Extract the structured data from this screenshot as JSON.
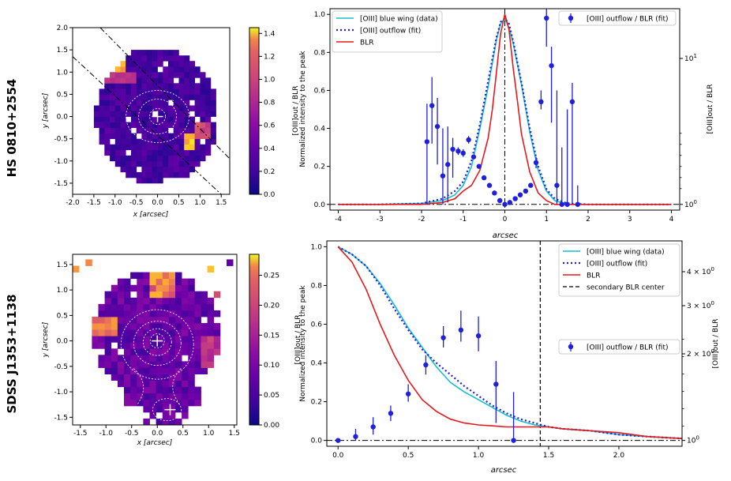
{
  "colors": {
    "cyan": "#17becf",
    "blue": "#1f1fdd",
    "red": "#e41a1c",
    "black": "#000000"
  },
  "chart_data": [
    {
      "id": "top-map",
      "type": "heatmap",
      "row_title": "HS 0810+2554",
      "xlabel": "x [arcsec]",
      "ylabel": "y [arcsec]",
      "xlim": [
        -2.0,
        1.7
      ],
      "ylim": [
        -1.75,
        2.0
      ],
      "xticks": [
        "-2.0",
        "-1.5",
        "-1.0",
        "-0.5",
        "0.0",
        "0.5",
        "1.0",
        "1.5"
      ],
      "yticks": [
        "2.0",
        "1.5",
        "1.0",
        "0.5",
        "0.0",
        "-0.5",
        "-1.0",
        "-1.5"
      ],
      "colorbar": {
        "label": "[OIII]out / BLR",
        "ticks": [
          "0.0",
          "0.2",
          "0.4",
          "0.6",
          "0.8",
          "1.0",
          "1.2",
          "1.4"
        ],
        "range": [
          0,
          1.45
        ]
      },
      "center": [
        0.0,
        0.0
      ]
    },
    {
      "id": "top-profile",
      "type": "line",
      "xlabel": "arcsec",
      "ylabel": "Normalized intensity to the peak",
      "y2label": "[OIII]out / BLR",
      "xlim": [
        -4.2,
        4.2
      ],
      "ylim": [
        -0.03,
        1.03
      ],
      "xticks": [
        "-4",
        "-3",
        "-2",
        "-1",
        "0",
        "1",
        "2",
        "3",
        "4"
      ],
      "yticks": [
        "0.0",
        "0.2",
        "0.4",
        "0.6",
        "0.8",
        "1.0"
      ],
      "y2ticks": [
        "10^0",
        "10^1"
      ],
      "legend_left": [
        "[OIII] blue wing (data)",
        "[OIII] outflow (fit)",
        "BLR"
      ],
      "legend_right": [
        "[OIII] outflow / BLR (fit)"
      ],
      "series": [
        {
          "name": "[OIII] blue wing (data)",
          "style": "cyan",
          "x": [
            -4.0,
            -3.0,
            -2.0,
            -1.5,
            -1.2,
            -1.0,
            -0.8,
            -0.6,
            -0.4,
            -0.2,
            -0.1,
            0.0,
            0.1,
            0.2,
            0.4,
            0.6,
            0.8,
            1.0,
            1.2,
            1.5,
            2.0,
            3.0,
            4.0
          ],
          "y": [
            0.0,
            0.0,
            0.005,
            0.02,
            0.05,
            0.1,
            0.2,
            0.4,
            0.62,
            0.87,
            0.95,
            0.98,
            0.93,
            0.85,
            0.63,
            0.38,
            0.18,
            0.07,
            0.02,
            0.0,
            0.0,
            0.0,
            0.0
          ]
        },
        {
          "name": "[OIII] outflow (fit)",
          "style": "dotted-blue",
          "x": [
            -4.0,
            -3.0,
            -2.0,
            -1.5,
            -1.2,
            -1.0,
            -0.8,
            -0.6,
            -0.4,
            -0.2,
            -0.1,
            0.0,
            0.1,
            0.2,
            0.4,
            0.6,
            0.8,
            1.0,
            1.2,
            1.5,
            2.0,
            3.0,
            4.0
          ],
          "y": [
            0.0,
            0.0,
            0.005,
            0.03,
            0.07,
            0.12,
            0.23,
            0.42,
            0.65,
            0.88,
            0.96,
            0.98,
            0.95,
            0.86,
            0.64,
            0.4,
            0.2,
            0.08,
            0.03,
            0.005,
            0.0,
            0.0,
            0.0
          ]
        },
        {
          "name": "BLR",
          "style": "red",
          "x": [
            -4.0,
            -3.0,
            -2.0,
            -1.5,
            -1.2,
            -1.0,
            -0.8,
            -0.6,
            -0.4,
            -0.3,
            -0.2,
            -0.1,
            0.0,
            0.1,
            0.2,
            0.3,
            0.4,
            0.6,
            0.8,
            1.0,
            1.2,
            1.5,
            2.0,
            3.0,
            4.0
          ],
          "y": [
            0.0,
            0.0,
            0.0,
            0.01,
            0.03,
            0.07,
            0.1,
            0.18,
            0.35,
            0.5,
            0.7,
            0.9,
            1.0,
            0.92,
            0.72,
            0.55,
            0.37,
            0.17,
            0.06,
            0.02,
            0.0,
            0.0,
            0.0,
            0.0,
            0.0
          ]
        }
      ],
      "ratio_points": {
        "name": "[OIII] outflow / BLR (fit)",
        "x": [
          -1.87,
          -1.75,
          -1.62,
          -1.49,
          -1.37,
          -1.25,
          -1.12,
          -1.0,
          -0.87,
          -0.75,
          -0.62,
          -0.5,
          -0.37,
          -0.25,
          -0.12,
          0.0,
          0.12,
          0.25,
          0.37,
          0.5,
          0.62,
          0.75,
          0.87,
          1.0,
          1.12,
          1.25,
          1.37,
          1.5,
          1.62,
          1.75
        ],
        "y": [
          0.33,
          0.52,
          0.41,
          0.15,
          0.21,
          0.29,
          0.28,
          0.27,
          0.34,
          0.25,
          0.2,
          0.14,
          0.1,
          0.06,
          0.02,
          0.0,
          0.01,
          0.03,
          0.05,
          0.07,
          0.1,
          0.22,
          0.54,
          0.98,
          0.73,
          0.1,
          0.0,
          0.0,
          0.54,
          0.0
        ],
        "err_lo": [
          0.33,
          0.2,
          0.2,
          0.15,
          0.2,
          0.15,
          0.02,
          0.02,
          0.02,
          0.0,
          0.0,
          0.0,
          0.0,
          0.0,
          0.0,
          0.0,
          0.0,
          0.0,
          0.0,
          0.0,
          0.0,
          0.03,
          0.04,
          0.15,
          0.3,
          0.1,
          0.0,
          0.0,
          0.54,
          0.0
        ],
        "err_hi": [
          0.2,
          0.15,
          0.15,
          0.25,
          0.2,
          0.06,
          0.02,
          0.02,
          0.02,
          0.0,
          0.0,
          0.0,
          0.0,
          0.0,
          0.0,
          0.0,
          0.0,
          0.0,
          0.0,
          0.0,
          0.0,
          0.03,
          0.06,
          0.05,
          0.1,
          0.5,
          0.3,
          0.5,
          0.1,
          0.1
        ]
      },
      "vline": 0.0
    },
    {
      "id": "bottom-map",
      "type": "heatmap",
      "row_title": "SDSS J1353+1138",
      "xlabel": "x [arcsec]",
      "ylabel": "y [arcsec]",
      "xlim": [
        -1.65,
        1.55
      ],
      "ylim": [
        -1.65,
        1.7
      ],
      "xticks": [
        "-1.5",
        "-1.0",
        "-0.5",
        "0.0",
        "0.5",
        "1.0",
        "1.5"
      ],
      "yticks": [
        "1.5",
        "1.0",
        "0.5",
        "0.0",
        "-0.5",
        "-1.0",
        "-1.5"
      ],
      "colorbar": {
        "label": "[OIII]out / BLR",
        "ticks": [
          "0.00",
          "0.05",
          "0.10",
          "0.15",
          "0.20",
          "0.25"
        ],
        "range": [
          0,
          0.285
        ]
      },
      "center": [
        0.0,
        0.0
      ],
      "secondary_center": [
        0.25,
        -1.35
      ]
    },
    {
      "id": "bottom-profile",
      "type": "line",
      "xlabel": "arcsec",
      "ylabel": "Normalized intensity to the peak",
      "y2label": "[OIII]out / BLR",
      "xlim": [
        -0.08,
        2.45
      ],
      "ylim": [
        -0.03,
        1.03
      ],
      "xticks": [
        "0.0",
        "0.5",
        "1.0",
        "1.5",
        "2.0"
      ],
      "yticks": [
        "0.0",
        "0.2",
        "0.4",
        "0.6",
        "0.8",
        "1.0"
      ],
      "y2ticks": [
        "10^0",
        "2 × 10^0",
        "3 × 10^0",
        "4 × 10^0"
      ],
      "legend_upper": [
        "[OIII] blue wing (data)",
        "[OIII] outflow (fit)",
        "BLR",
        "secondary BLR center"
      ],
      "legend_ratio": [
        "[OIII] outflow / BLR (fit)"
      ],
      "series": [
        {
          "name": "[OIII] blue wing (data)",
          "style": "cyan",
          "x": [
            0.0,
            0.1,
            0.2,
            0.3,
            0.4,
            0.5,
            0.6,
            0.7,
            0.8,
            0.9,
            1.0,
            1.1,
            1.2,
            1.3,
            1.4,
            1.5,
            1.6,
            1.8,
            2.0,
            2.2,
            2.45
          ],
          "y": [
            1.0,
            0.96,
            0.9,
            0.81,
            0.7,
            0.58,
            0.48,
            0.38,
            0.3,
            0.25,
            0.21,
            0.17,
            0.13,
            0.1,
            0.08,
            0.07,
            0.06,
            0.05,
            0.03,
            0.02,
            0.01
          ]
        },
        {
          "name": "[OIII] outflow (fit)",
          "style": "dotted-blue",
          "x": [
            0.0,
            0.1,
            0.2,
            0.3,
            0.4,
            0.5,
            0.6,
            0.7,
            0.8,
            0.9,
            1.0,
            1.1,
            1.2,
            1.3,
            1.4,
            1.5,
            1.6,
            1.8,
            2.0,
            2.2,
            2.45
          ],
          "y": [
            1.0,
            0.96,
            0.9,
            0.8,
            0.68,
            0.57,
            0.47,
            0.4,
            0.34,
            0.28,
            0.23,
            0.18,
            0.14,
            0.11,
            0.09,
            0.07,
            0.06,
            0.05,
            0.03,
            0.02,
            0.01
          ]
        },
        {
          "name": "BLR",
          "style": "red",
          "x": [
            0.0,
            0.1,
            0.2,
            0.3,
            0.4,
            0.5,
            0.6,
            0.7,
            0.8,
            0.9,
            1.0,
            1.1,
            1.2,
            1.3,
            1.4,
            1.5,
            1.6,
            1.8,
            2.0,
            2.2,
            2.45
          ],
          "y": [
            1.0,
            0.92,
            0.78,
            0.6,
            0.44,
            0.31,
            0.21,
            0.15,
            0.11,
            0.09,
            0.08,
            0.075,
            0.07,
            0.07,
            0.07,
            0.07,
            0.06,
            0.05,
            0.04,
            0.02,
            0.01
          ]
        }
      ],
      "ratio_points": {
        "name": "[OIII] outflow / BLR (fit)",
        "x": [
          0.0,
          0.125,
          0.25,
          0.375,
          0.5,
          0.625,
          0.75,
          0.875,
          1.0,
          1.125,
          1.25
        ],
        "y": [
          0.0,
          0.02,
          0.07,
          0.14,
          0.24,
          0.39,
          0.53,
          0.57,
          0.54,
          0.29,
          0.0
        ],
        "err_lo": [
          0.0,
          0.02,
          0.04,
          0.04,
          0.04,
          0.05,
          0.05,
          0.06,
          0.08,
          0.2,
          0.0
        ],
        "err_hi": [
          0.0,
          0.04,
          0.05,
          0.04,
          0.05,
          0.05,
          0.06,
          0.1,
          0.1,
          0.12,
          0.25
        ]
      },
      "vline_dashed": 1.44
    }
  ]
}
